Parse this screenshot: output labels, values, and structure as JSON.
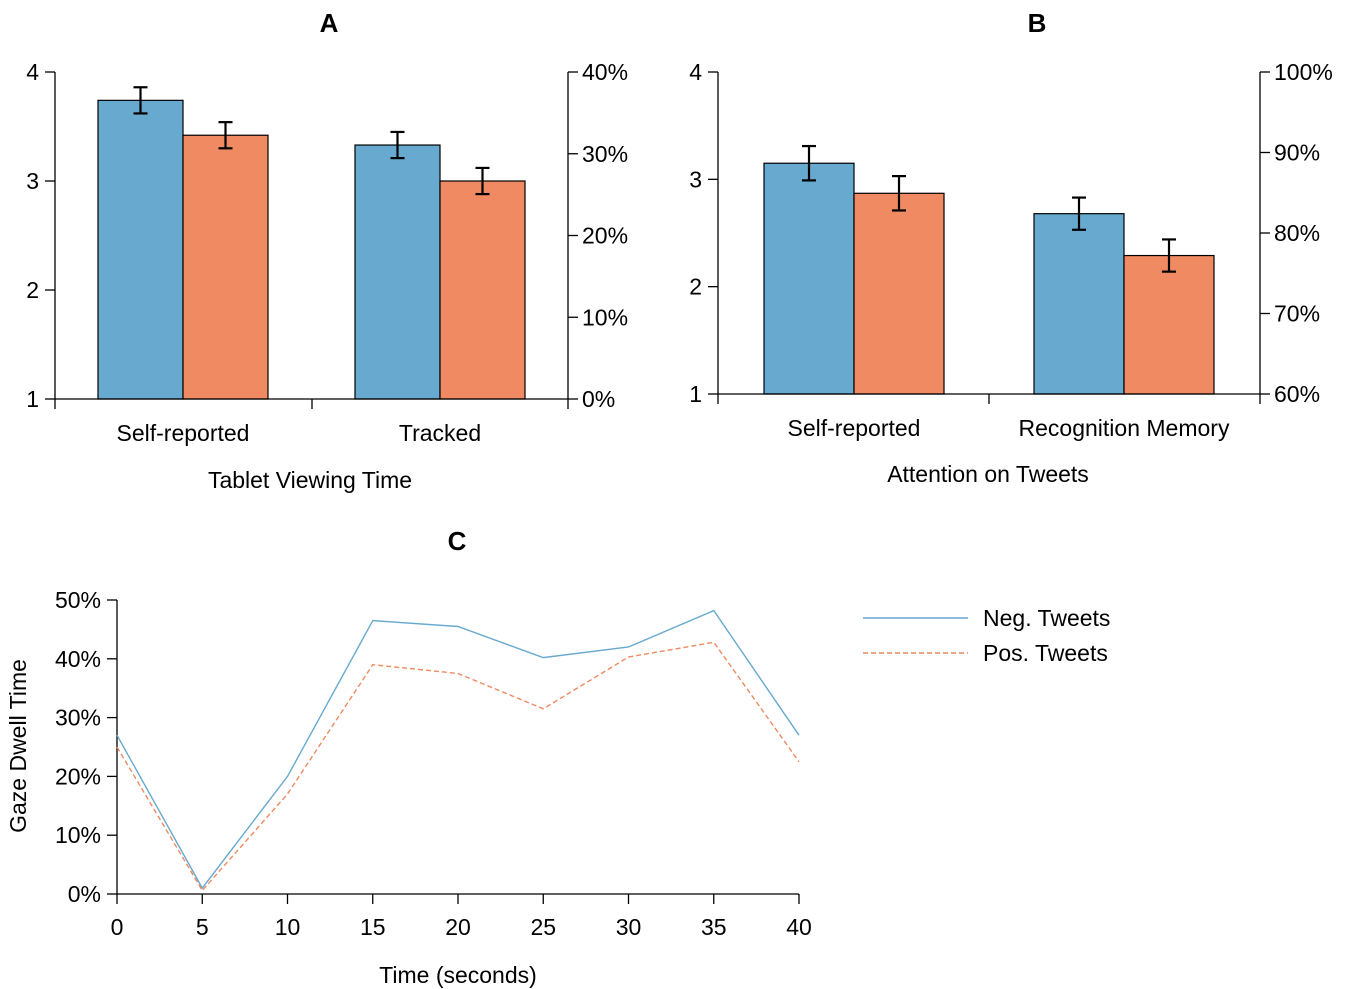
{
  "colors": {
    "negative": "#67a9cf",
    "positive": "#ef8a62"
  },
  "chart_data": [
    {
      "id": "A",
      "type": "bar",
      "title": "A",
      "xlabel": "Tablet Viewing Time",
      "categories": [
        "Self-reported",
        "Tracked"
      ],
      "left_axis": {
        "ylim": [
          1,
          4
        ],
        "ticks": [
          "1",
          "2",
          "3",
          "4"
        ]
      },
      "right_axis": {
        "ylim": [
          0,
          40
        ],
        "ticks": [
          "0%",
          "10%",
          "20%",
          "30%",
          "40%"
        ]
      },
      "series": [
        {
          "values": [
            3.74,
            3.33
          ],
          "errors": [
            0.12,
            0.12
          ],
          "color": "#67a9cf"
        },
        {
          "values": [
            3.42,
            3.0
          ],
          "errors": [
            0.12,
            0.12
          ],
          "color": "#ef8a62"
        }
      ]
    },
    {
      "id": "B",
      "type": "bar",
      "title": "B",
      "xlabel": "Attention on Tweets",
      "categories": [
        "Self-reported",
        "Recognition Memory"
      ],
      "left_axis": {
        "ylim": [
          1,
          4
        ],
        "ticks": [
          "1",
          "2",
          "3",
          "4"
        ]
      },
      "right_axis": {
        "ylim": [
          60,
          100
        ],
        "ticks": [
          "60%",
          "70%",
          "80%",
          "90%",
          "100%"
        ]
      },
      "series": [
        {
          "values": [
            3.15,
            2.68
          ],
          "errors": [
            0.16,
            0.15
          ],
          "color": "#67a9cf"
        },
        {
          "values": [
            2.87,
            2.29
          ],
          "errors": [
            0.16,
            0.15
          ],
          "color": "#ef8a62"
        }
      ]
    },
    {
      "id": "C",
      "type": "line",
      "title": "C",
      "xlabel": "Time (seconds)",
      "ylabel": "Gaze Dwell Time",
      "x": [
        0,
        5,
        10,
        15,
        20,
        25,
        30,
        35,
        40
      ],
      "x_ticks": [
        "0",
        "5",
        "10",
        "15",
        "20",
        "25",
        "30",
        "35",
        "40"
      ],
      "ylim": [
        0,
        50
      ],
      "y_ticks": [
        "0%",
        "10%",
        "20%",
        "30%",
        "40%",
        "50%"
      ],
      "legend": "right",
      "series": [
        {
          "name": "Neg. Tweets",
          "values": [
            27,
            1,
            20,
            46.5,
            45.5,
            40.2,
            42,
            48.2,
            27
          ],
          "color": "#67a9cf",
          "style": "solid"
        },
        {
          "name": "Pos. Tweets",
          "values": [
            25,
            0.6,
            17,
            39,
            37.5,
            31.5,
            40.3,
            42.8,
            22.5
          ],
          "color": "#ef8a62",
          "style": "dashed"
        }
      ]
    }
  ]
}
